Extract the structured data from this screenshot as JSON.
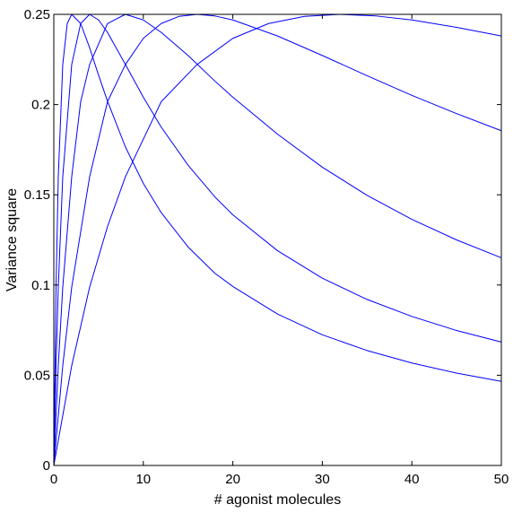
{
  "chart_data": {
    "type": "line",
    "title": "",
    "xlabel": "# agonist molecules",
    "ylabel": "Variance square",
    "xlim": [
      0,
      50
    ],
    "ylim": [
      0,
      0.25
    ],
    "xticks": [
      0,
      10,
      20,
      30,
      40,
      50
    ],
    "yticks": [
      0,
      0.05,
      0.1,
      0.15,
      0.2,
      0.25
    ],
    "xtick_labels": [
      "0",
      "10",
      "20",
      "30",
      "40",
      "50"
    ],
    "ytick_labels": [
      "0",
      "0.05",
      "0.1",
      "0.15",
      "0.2",
      "0.25"
    ],
    "grid": false,
    "legend": "none",
    "line_color": "#0000ff",
    "series": [
      {
        "x": [
          0,
          0.25,
          0.5,
          1,
          1.5,
          2,
          3,
          4,
          5,
          6,
          8,
          10,
          12,
          15,
          18,
          20,
          25,
          30,
          35,
          40,
          45,
          50
        ],
        "values": [
          0,
          0.0988,
          0.16,
          0.2222,
          0.2449,
          0.25,
          0.2449,
          0.2315,
          0.2163,
          0.2019,
          0.1765,
          0.1563,
          0.1401,
          0.1211,
          0.1065,
          0.0992,
          0.0839,
          0.0724,
          0.0637,
          0.0568,
          0.0512,
          0.0466
        ]
      },
      {
        "x": [
          0,
          0.25,
          0.5,
          1,
          2,
          3,
          4,
          5,
          6,
          8,
          10,
          12,
          15,
          18,
          20,
          25,
          30,
          35,
          40,
          45,
          50
        ],
        "values": [
          0,
          0.0553,
          0.0988,
          0.16,
          0.2222,
          0.2449,
          0.25,
          0.2469,
          0.24,
          0.2222,
          0.2041,
          0.1875,
          0.1664,
          0.1488,
          0.1389,
          0.119,
          0.1038,
          0.092,
          0.0826,
          0.0748,
          0.0684
        ]
      },
      {
        "x": [
          0,
          0.5,
          1,
          2,
          3,
          4,
          6,
          8,
          10,
          12,
          15,
          18,
          20,
          25,
          30,
          35,
          40,
          45,
          50
        ],
        "values": [
          0,
          0.0553,
          0.0988,
          0.16,
          0.2016,
          0.2222,
          0.2449,
          0.25,
          0.2469,
          0.24,
          0.2272,
          0.213,
          0.2041,
          0.1836,
          0.1653,
          0.1497,
          0.1364,
          0.125,
          0.1151
        ]
      },
      {
        "x": [
          0,
          1,
          2,
          4,
          6,
          8,
          10,
          12,
          14,
          16,
          18,
          20,
          25,
          30,
          35,
          40,
          45,
          50
        ],
        "values": [
          0,
          0.0553,
          0.0988,
          0.16,
          0.2016,
          0.2222,
          0.2367,
          0.2449,
          0.2489,
          0.25,
          0.2491,
          0.2469,
          0.238,
          0.2272,
          0.216,
          0.2051,
          0.195,
          0.1855
        ]
      },
      {
        "x": [
          0,
          2,
          4,
          6,
          8,
          12,
          16,
          20,
          24,
          28,
          32,
          36,
          40,
          45,
          50
        ],
        "values": [
          0,
          0.0553,
          0.0988,
          0.1324,
          0.16,
          0.2016,
          0.2222,
          0.2367,
          0.2449,
          0.2489,
          0.25,
          0.2491,
          0.2469,
          0.2428,
          0.238
        ]
      }
    ]
  }
}
